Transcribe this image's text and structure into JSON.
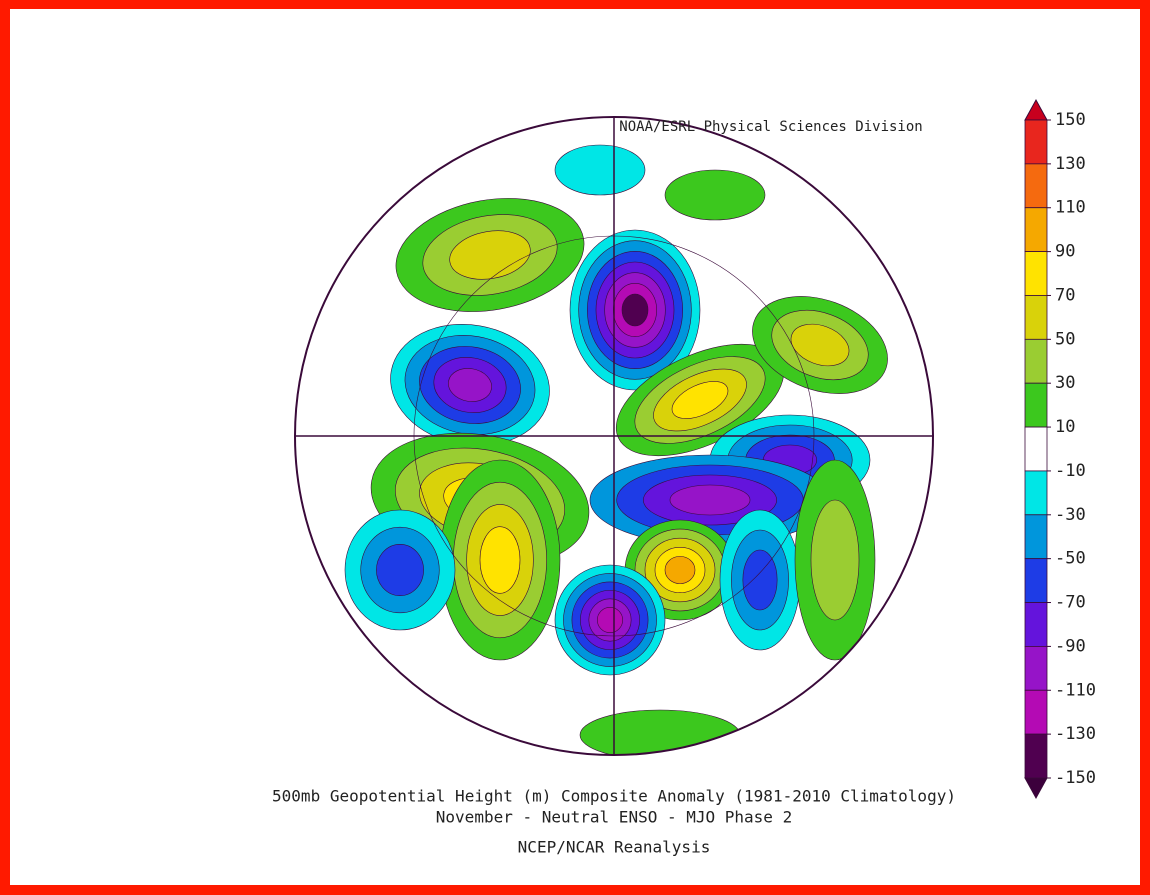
{
  "header": {
    "credit": "NOAA/ESRL Physical Sciences Division"
  },
  "colorbar": {
    "ticks": [
      150,
      130,
      110,
      90,
      70,
      50,
      30,
      10,
      -10,
      -30,
      -50,
      -70,
      -90,
      -110,
      -130,
      -150
    ],
    "colors": [
      "#e8261e",
      "#f56a0f",
      "#f5a800",
      "#ffe300",
      "#d9d20a",
      "#9acd32",
      "#3cc81e",
      "#ffffff",
      "#00e6e6",
      "#0096dc",
      "#1e3ce6",
      "#6414dc",
      "#9614c8",
      "#b40ab4",
      "#500050"
    ],
    "over_color": "#c8001e",
    "under_color": "#3c003c"
  },
  "footer": {
    "title": "500mb Geopotential Height (m) Composite Anomaly (1981-2010 Climatology)",
    "subtitle": "November - Neutral ENSO - MJO Phase 2",
    "source": "NCEP/NCAR Reanalysis"
  }
}
